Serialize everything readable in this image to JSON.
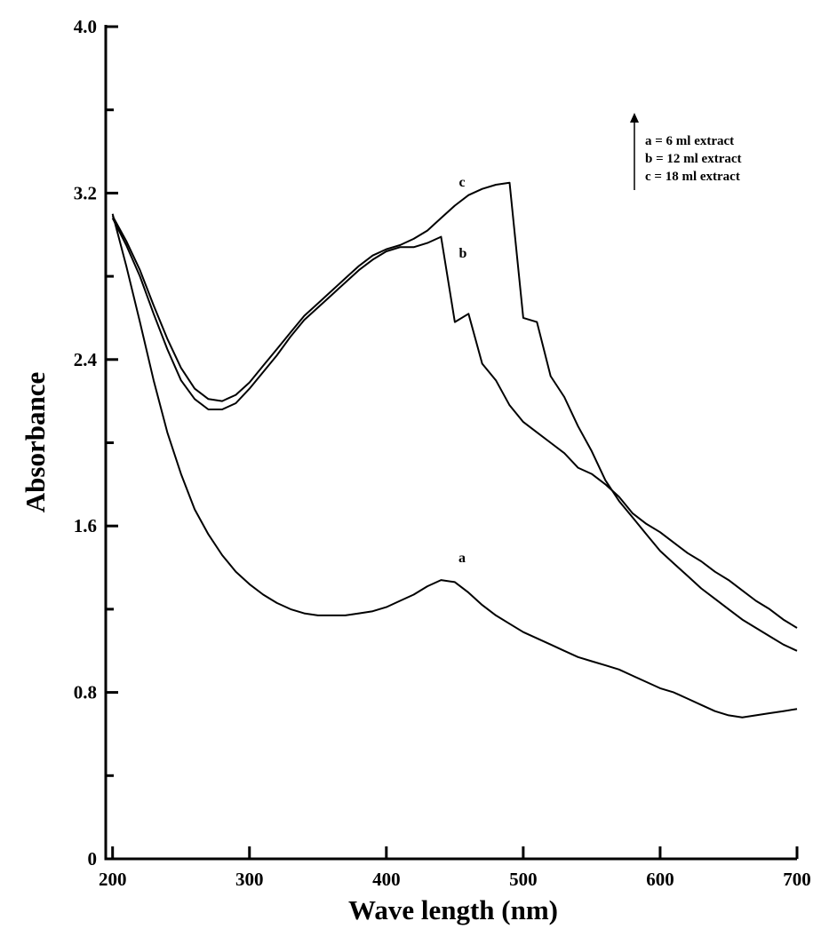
{
  "chart_data": {
    "type": "line",
    "x_label": "Wave length (nm)",
    "y_label": "Absorbance",
    "annotations": [
      "a = 6 ml extract",
      "b = 12 ml extract",
      "c = 18 ml extract"
    ],
    "x": [
      200,
      210,
      220,
      230,
      240,
      250,
      260,
      270,
      280,
      290,
      300,
      310,
      320,
      330,
      340,
      350,
      360,
      370,
      380,
      390,
      400,
      410,
      420,
      430,
      440,
      450,
      460,
      470,
      480,
      490,
      500,
      510,
      520,
      530,
      540,
      550,
      560,
      570,
      580,
      590,
      600,
      610,
      620,
      630,
      640,
      650,
      660,
      670,
      680,
      690,
      700
    ],
    "series": [
      {
        "name": "a",
        "color": "#000000",
        "values": [
          3.1,
          2.85,
          2.58,
          2.3,
          2.05,
          1.85,
          1.68,
          1.56,
          1.46,
          1.38,
          1.32,
          1.27,
          1.23,
          1.2,
          1.18,
          1.17,
          1.17,
          1.17,
          1.18,
          1.19,
          1.21,
          1.24,
          1.27,
          1.31,
          1.34,
          1.33,
          1.28,
          1.22,
          1.17,
          1.13,
          1.09,
          1.06,
          1.03,
          1.0,
          0.97,
          0.95,
          0.93,
          0.91,
          0.88,
          0.85,
          0.82,
          0.8,
          0.77,
          0.74,
          0.71,
          0.69,
          0.68,
          0.69,
          0.7,
          0.71,
          0.72
        ]
      },
      {
        "name": "b",
        "color": "#000000",
        "values": [
          3.08,
          2.95,
          2.8,
          2.62,
          2.45,
          2.3,
          2.21,
          2.16,
          2.16,
          2.19,
          2.26,
          2.34,
          2.42,
          2.51,
          2.59,
          2.65,
          2.71,
          2.77,
          2.83,
          2.88,
          2.92,
          2.94,
          2.94,
          2.96,
          2.99,
          2.58,
          2.62,
          2.38,
          2.3,
          2.18,
          2.1,
          2.05,
          2.0,
          1.95,
          1.88,
          1.85,
          1.8,
          1.74,
          1.66,
          1.61,
          1.57,
          1.52,
          1.47,
          1.43,
          1.38,
          1.34,
          1.29,
          1.24,
          1.2,
          1.15,
          1.11
        ]
      },
      {
        "name": "c",
        "color": "#000000",
        "values": [
          3.09,
          2.97,
          2.83,
          2.66,
          2.5,
          2.36,
          2.26,
          2.21,
          2.2,
          2.23,
          2.29,
          2.37,
          2.45,
          2.53,
          2.61,
          2.67,
          2.73,
          2.79,
          2.85,
          2.9,
          2.93,
          2.95,
          2.98,
          3.02,
          3.08,
          3.14,
          3.19,
          3.22,
          3.24,
          3.25,
          2.6,
          2.58,
          2.32,
          2.22,
          2.08,
          1.96,
          1.82,
          1.72,
          1.64,
          1.56,
          1.48,
          1.42,
          1.36,
          1.3,
          1.25,
          1.2,
          1.15,
          1.11,
          1.07,
          1.03,
          1.0
        ]
      }
    ],
    "xlim": [
      195,
      700
    ],
    "ylim": [
      0,
      4
    ],
    "xticks": [
      200,
      300,
      400,
      500,
      600,
      700
    ],
    "yticks": [
      0,
      0.8,
      1.6,
      2.4,
      3.2,
      {
        "value": 4,
        "label": "4.0"
      }
    ],
    "yticks_minor": [
      0.4,
      1.2,
      2.0,
      2.8,
      3.6
    ],
    "grid": false
  }
}
